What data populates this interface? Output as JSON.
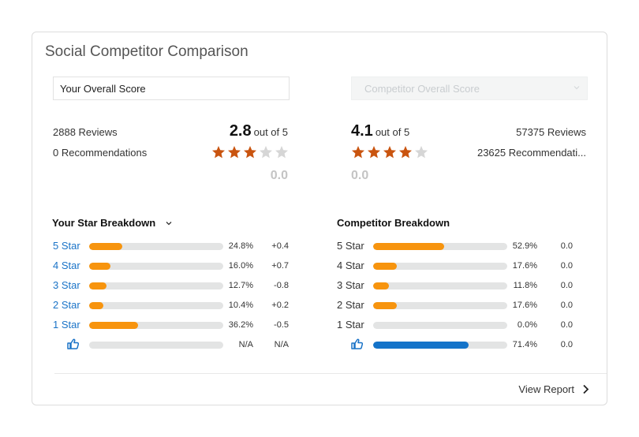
{
  "title": "Social Competitor Comparison",
  "left": {
    "select_label": "Your Overall Score",
    "reviews": "2888 Reviews",
    "recommendations": "0 Recommendations",
    "score": "2.8",
    "score_suffix": "out of 5",
    "stars_filled": 3,
    "stars_total": 5,
    "delta": "0.0",
    "breakdown_title": "Your Star Breakdown",
    "rows": [
      {
        "label": "5 Star",
        "percent": "24.8%",
        "fill": 0.248,
        "change": "+0.4"
      },
      {
        "label": "4 Star",
        "percent": "16.0%",
        "fill": 0.16,
        "change": "+0.7"
      },
      {
        "label": "3 Star",
        "percent": "12.7%",
        "fill": 0.127,
        "change": "-0.8"
      },
      {
        "label": "2 Star",
        "percent": "10.4%",
        "fill": 0.104,
        "change": "+0.2"
      },
      {
        "label": "1 Star",
        "percent": "36.2%",
        "fill": 0.362,
        "change": "-0.5"
      }
    ],
    "recommend_row": {
      "icon": "thumbs-up-icon",
      "percent": "N/A",
      "fill": 0,
      "change": "N/A"
    }
  },
  "right": {
    "select_placeholder": "Competitor Overall Score",
    "reviews": "57375 Reviews",
    "recommendations": "23625 Recommendati...",
    "score": "4.1",
    "score_suffix": "out of 5",
    "stars_filled": 4,
    "stars_total": 5,
    "delta": "0.0",
    "breakdown_title": "Competitor Breakdown",
    "rows": [
      {
        "label": "5 Star",
        "percent": "52.9%",
        "fill": 0.529,
        "change": "0.0"
      },
      {
        "label": "4 Star",
        "percent": "17.6%",
        "fill": 0.176,
        "change": "0.0"
      },
      {
        "label": "3 Star",
        "percent": "11.8%",
        "fill": 0.118,
        "change": "0.0"
      },
      {
        "label": "2 Star",
        "percent": "17.6%",
        "fill": 0.176,
        "change": "0.0"
      },
      {
        "label": "1 Star",
        "percent": "0.0%",
        "fill": 0.0,
        "change": "0.0"
      }
    ],
    "recommend_row": {
      "icon": "thumbs-up-icon",
      "percent": "71.4%",
      "fill": 0.714,
      "change": "0.0"
    }
  },
  "footer": {
    "view_report": "View Report"
  },
  "colors": {
    "star_filled": "#c9540f",
    "star_empty": "#d6d6d6",
    "bar_orange": "#f7940e",
    "bar_blue": "#1473c9",
    "link_blue": "#1a73c7"
  }
}
